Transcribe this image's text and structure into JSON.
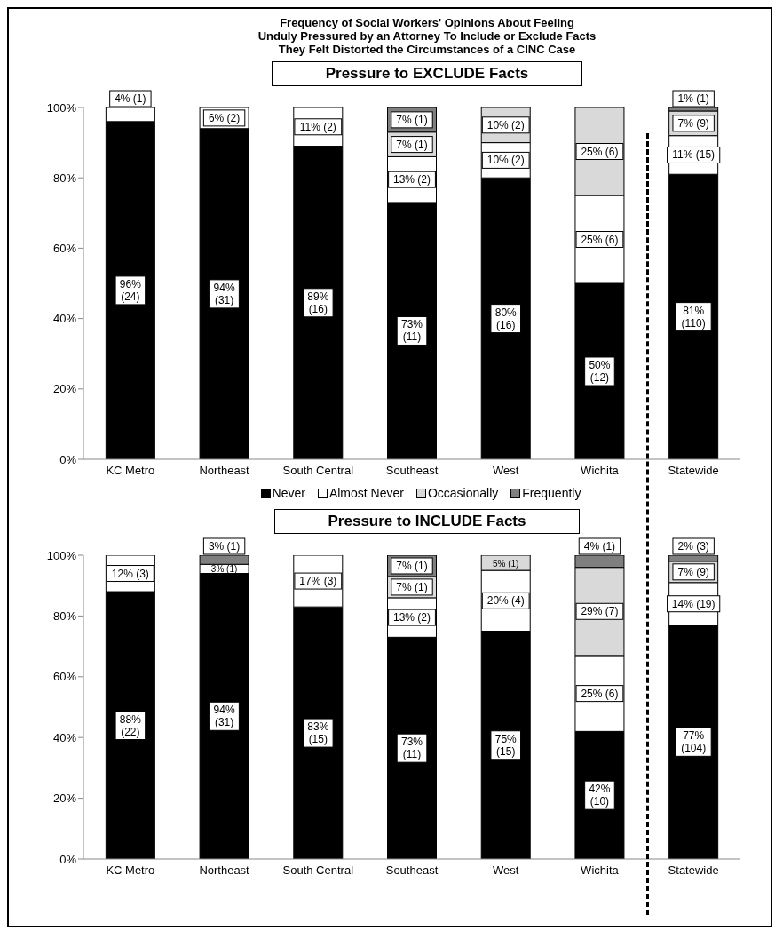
{
  "chart_data": [
    {
      "type": "bar",
      "title": "Frequency of Social Workers' Opinions About Feeling\nUnduly Pressured by an Attorney To Include or Exclude Facts\nThey Felt Distorted the Circumstances of a CINC Case",
      "subtitle": "Pressure to EXCLUDE Facts",
      "stacked": true,
      "legend": "bottom",
      "categories": [
        "KC Metro",
        "Northeast",
        "South Central",
        "Southeast",
        "West",
        "Wichita",
        "Statewide"
      ],
      "ylim": [
        0,
        100
      ],
      "yticks": [
        {
          "value": 0,
          "label": "0%"
        },
        {
          "value": 20,
          "label": "20%"
        },
        {
          "value": 40,
          "label": "40%"
        },
        {
          "value": 60,
          "label": "60%"
        },
        {
          "value": 80,
          "label": "80%"
        },
        {
          "value": 100,
          "label": "100%"
        }
      ],
      "series": [
        {
          "name": "Never",
          "color": "#000000",
          "values": [
            96,
            94,
            89,
            73,
            80,
            50,
            81
          ],
          "value_labels": [
            "96% (24)",
            "94% (31)",
            "89% (16)",
            "73% (11)",
            "80% (16)",
            "50% (12)",
            "81% (110)"
          ]
        },
        {
          "name": "Almost Never",
          "color": "#ffffff",
          "values": [
            4,
            6,
            11,
            13,
            10,
            25,
            11
          ],
          "value_labels": [
            "4% (1)",
            "6% (2)",
            "11% (2)",
            "13% (2)",
            "10% (2)",
            "25% (6)",
            "11% (15)"
          ]
        },
        {
          "name": "Occasionally",
          "color": "#d9d9d9",
          "values": [
            null,
            null,
            null,
            7,
            10,
            25,
            7
          ],
          "value_labels": [
            null,
            null,
            null,
            "7% (1)",
            "10% (2)",
            "25% (6)",
            "7% (9)"
          ]
        },
        {
          "name": "Frequently",
          "color": "#7f7f7f",
          "values": [
            null,
            null,
            null,
            7,
            null,
            null,
            1
          ],
          "value_labels": [
            null,
            null,
            null,
            "7% (1)",
            null,
            null,
            "1% (1)"
          ]
        }
      ]
    },
    {
      "type": "bar",
      "subtitle": "Pressure to INCLUDE Facts",
      "stacked": true,
      "categories": [
        "KC Metro",
        "Northeast",
        "South Central",
        "Southeast",
        "West",
        "Wichita",
        "Statewide"
      ],
      "ylim": [
        0,
        100
      ],
      "yticks": [
        {
          "value": 0,
          "label": "0%"
        },
        {
          "value": 20,
          "label": "20%"
        },
        {
          "value": 40,
          "label": "40%"
        },
        {
          "value": 60,
          "label": "60%"
        },
        {
          "value": 80,
          "label": "80%"
        },
        {
          "value": 100,
          "label": "100%"
        }
      ],
      "series": [
        {
          "color": "#000000",
          "values": [
            88,
            94,
            83,
            73,
            75,
            42,
            77
          ],
          "value_labels": [
            "88% (22)",
            "94% (31)",
            "83% (15)",
            "73% (11)",
            "75% (15)",
            "42% (10)",
            "77% (104)"
          ]
        },
        {
          "color": "#ffffff",
          "values": [
            12,
            3,
            17,
            13,
            20,
            25,
            14
          ],
          "value_labels": [
            "12% (3)",
            "3% (1)",
            "17% (3)",
            "13% (2)",
            "20% (4)",
            "25% (6)",
            "14% (19)"
          ]
        },
        {
          "color": "#d9d9d9",
          "values": [
            null,
            null,
            null,
            7,
            5,
            29,
            7
          ],
          "value_labels": [
            null,
            null,
            null,
            "7% (1)",
            "5% (1)",
            "29% (7)",
            "7% (9)"
          ]
        },
        {
          "color": "#7f7f7f",
          "values": [
            null,
            3,
            null,
            7,
            null,
            4,
            2
          ],
          "value_labels": [
            null,
            "3% (1)",
            null,
            "7% (1)",
            null,
            "4% (1)",
            "2% (3)"
          ]
        }
      ]
    }
  ]
}
